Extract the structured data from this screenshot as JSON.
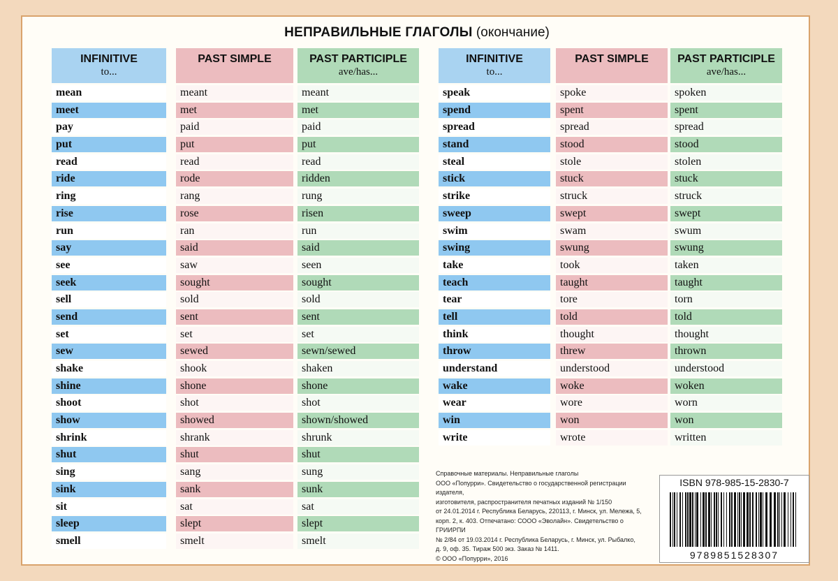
{
  "title": {
    "main": "НЕПРАВИЛЬНЫЕ ГЛАГОЛЫ",
    "sub": "(окончание)"
  },
  "headers": {
    "infinitive": "INFINITIVE",
    "infinitive_sub": "to...",
    "past_simple": "PAST SIMPLE",
    "past_participle": "PAST PARTICIPLE",
    "past_participle_sub": "ave/has..."
  },
  "left": {
    "infinitive": [
      "mean",
      "meet",
      "pay",
      "put",
      "read",
      "ride",
      "ring",
      "rise",
      "run",
      "say",
      "see",
      "seek",
      "sell",
      "send",
      "set",
      "sew",
      "shake",
      "shine",
      "shoot",
      "show",
      "shrink",
      "shut",
      "sing",
      "sink",
      "sit",
      "sleep",
      "smell"
    ],
    "past_simple": [
      "meant",
      "met",
      "paid",
      "put",
      "read",
      "rode",
      "rang",
      "rose",
      "ran",
      "said",
      "saw",
      "sought",
      "sold",
      "sent",
      "set",
      "sewed",
      "shook",
      "shone",
      "shot",
      "showed",
      "shrank",
      "shut",
      "sang",
      "sank",
      "sat",
      "slept",
      "smelt"
    ],
    "past_participle": [
      "meant",
      "met",
      "paid",
      "put",
      "read",
      "ridden",
      "rung",
      "risen",
      "run",
      "said",
      "seen",
      "sought",
      "sold",
      "sent",
      "set",
      "sewn/sewed",
      "shaken",
      "shone",
      "shot",
      "shown/showed",
      "shrunk",
      "shut",
      "sung",
      "sunk",
      "sat",
      "slept",
      "smelt"
    ]
  },
  "right": {
    "infinitive": [
      "speak",
      "spend",
      "spread",
      "stand",
      "steal",
      "stick",
      "strike",
      "sweep",
      "swim",
      "swing",
      "take",
      "teach",
      "tear",
      "tell",
      "think",
      "throw",
      "understand",
      "wake",
      "wear",
      "win",
      "write"
    ],
    "past_simple": [
      "spoke",
      "spent",
      "spread",
      "stood",
      "stole",
      "stuck",
      "struck",
      "swept",
      "swam",
      "swung",
      "took",
      "taught",
      "tore",
      "told",
      "thought",
      "threw",
      "understood",
      "woke",
      "wore",
      "won",
      "wrote"
    ],
    "past_participle": [
      "spoken",
      "spent",
      "spread",
      "stood",
      "stolen",
      "stuck",
      "struck",
      "swept",
      "swum",
      "swung",
      "taken",
      "taught",
      "torn",
      "told",
      "thought",
      "thrown",
      "understood",
      "woken",
      "worn",
      "won",
      "written"
    ]
  },
  "publisher_info": [
    "Справочные материалы. Неправильные глаголы",
    "ООО «Попурри». Свидетельство о государственной регистрации издателя,",
    "изготовителя, распространителя печатных изданий № 1/150",
    "от 24.01.2014 г. Республика Беларусь, 220113, г. Минск, ул. Мележа, 5,",
    "корп. 2, к. 403. Отпечатано: СООО «Эволайн». Свидетельство о ГРИИРПИ",
    "№ 2/84 от 19.03.2014 г. Республика Беларусь, г. Минск, ул. Рыбалко,",
    "д. 9, оф. 35. Тираж 500 экз. Заказ № 1411.",
    "© ООО «Попурри», 2016"
  ],
  "isbn": {
    "label": "ISBN 978-985-15-2830-7",
    "barcode_number": "9789851528307"
  }
}
